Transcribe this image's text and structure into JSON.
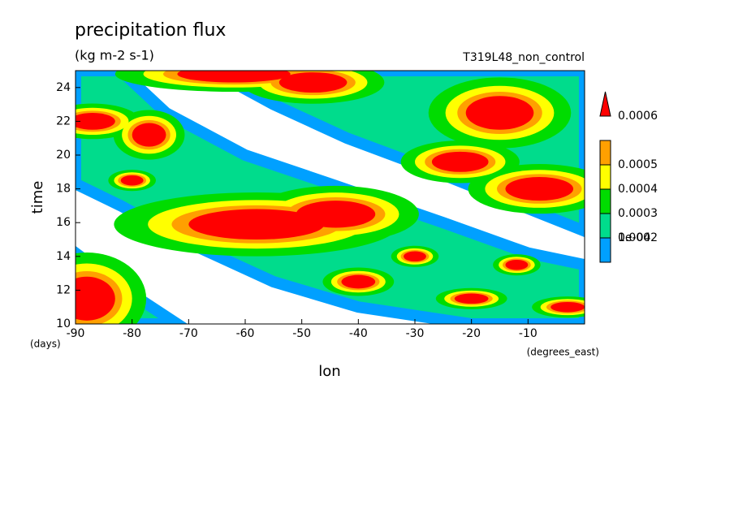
{
  "chart_data": {
    "type": "contour",
    "title": "precipitation flux",
    "subtitle": "(kg m-2 s-1)",
    "annotation": "T319L48_non_control",
    "x_label": "lon",
    "x_units": "(degrees_east)",
    "y_label": "time",
    "y_units": "(days)",
    "xlim": [
      -90,
      0
    ],
    "ylim": [
      10,
      25
    ],
    "xticks": [
      -90,
      -80,
      -70,
      -60,
      -50,
      -40,
      -30,
      -20,
      -10
    ],
    "yticks": [
      10,
      12,
      14,
      16,
      18,
      20,
      22,
      24
    ],
    "levels": [
      {
        "value": 0.0001,
        "label": "1e-04"
      },
      0.0002,
      0.0003,
      0.0004,
      0.0005,
      0.0006
    ],
    "colors": [
      "#00a0ff",
      "#00dc8c",
      "#00dc00",
      "#ffff00",
      "#ffa000",
      "#ff0000"
    ]
  }
}
